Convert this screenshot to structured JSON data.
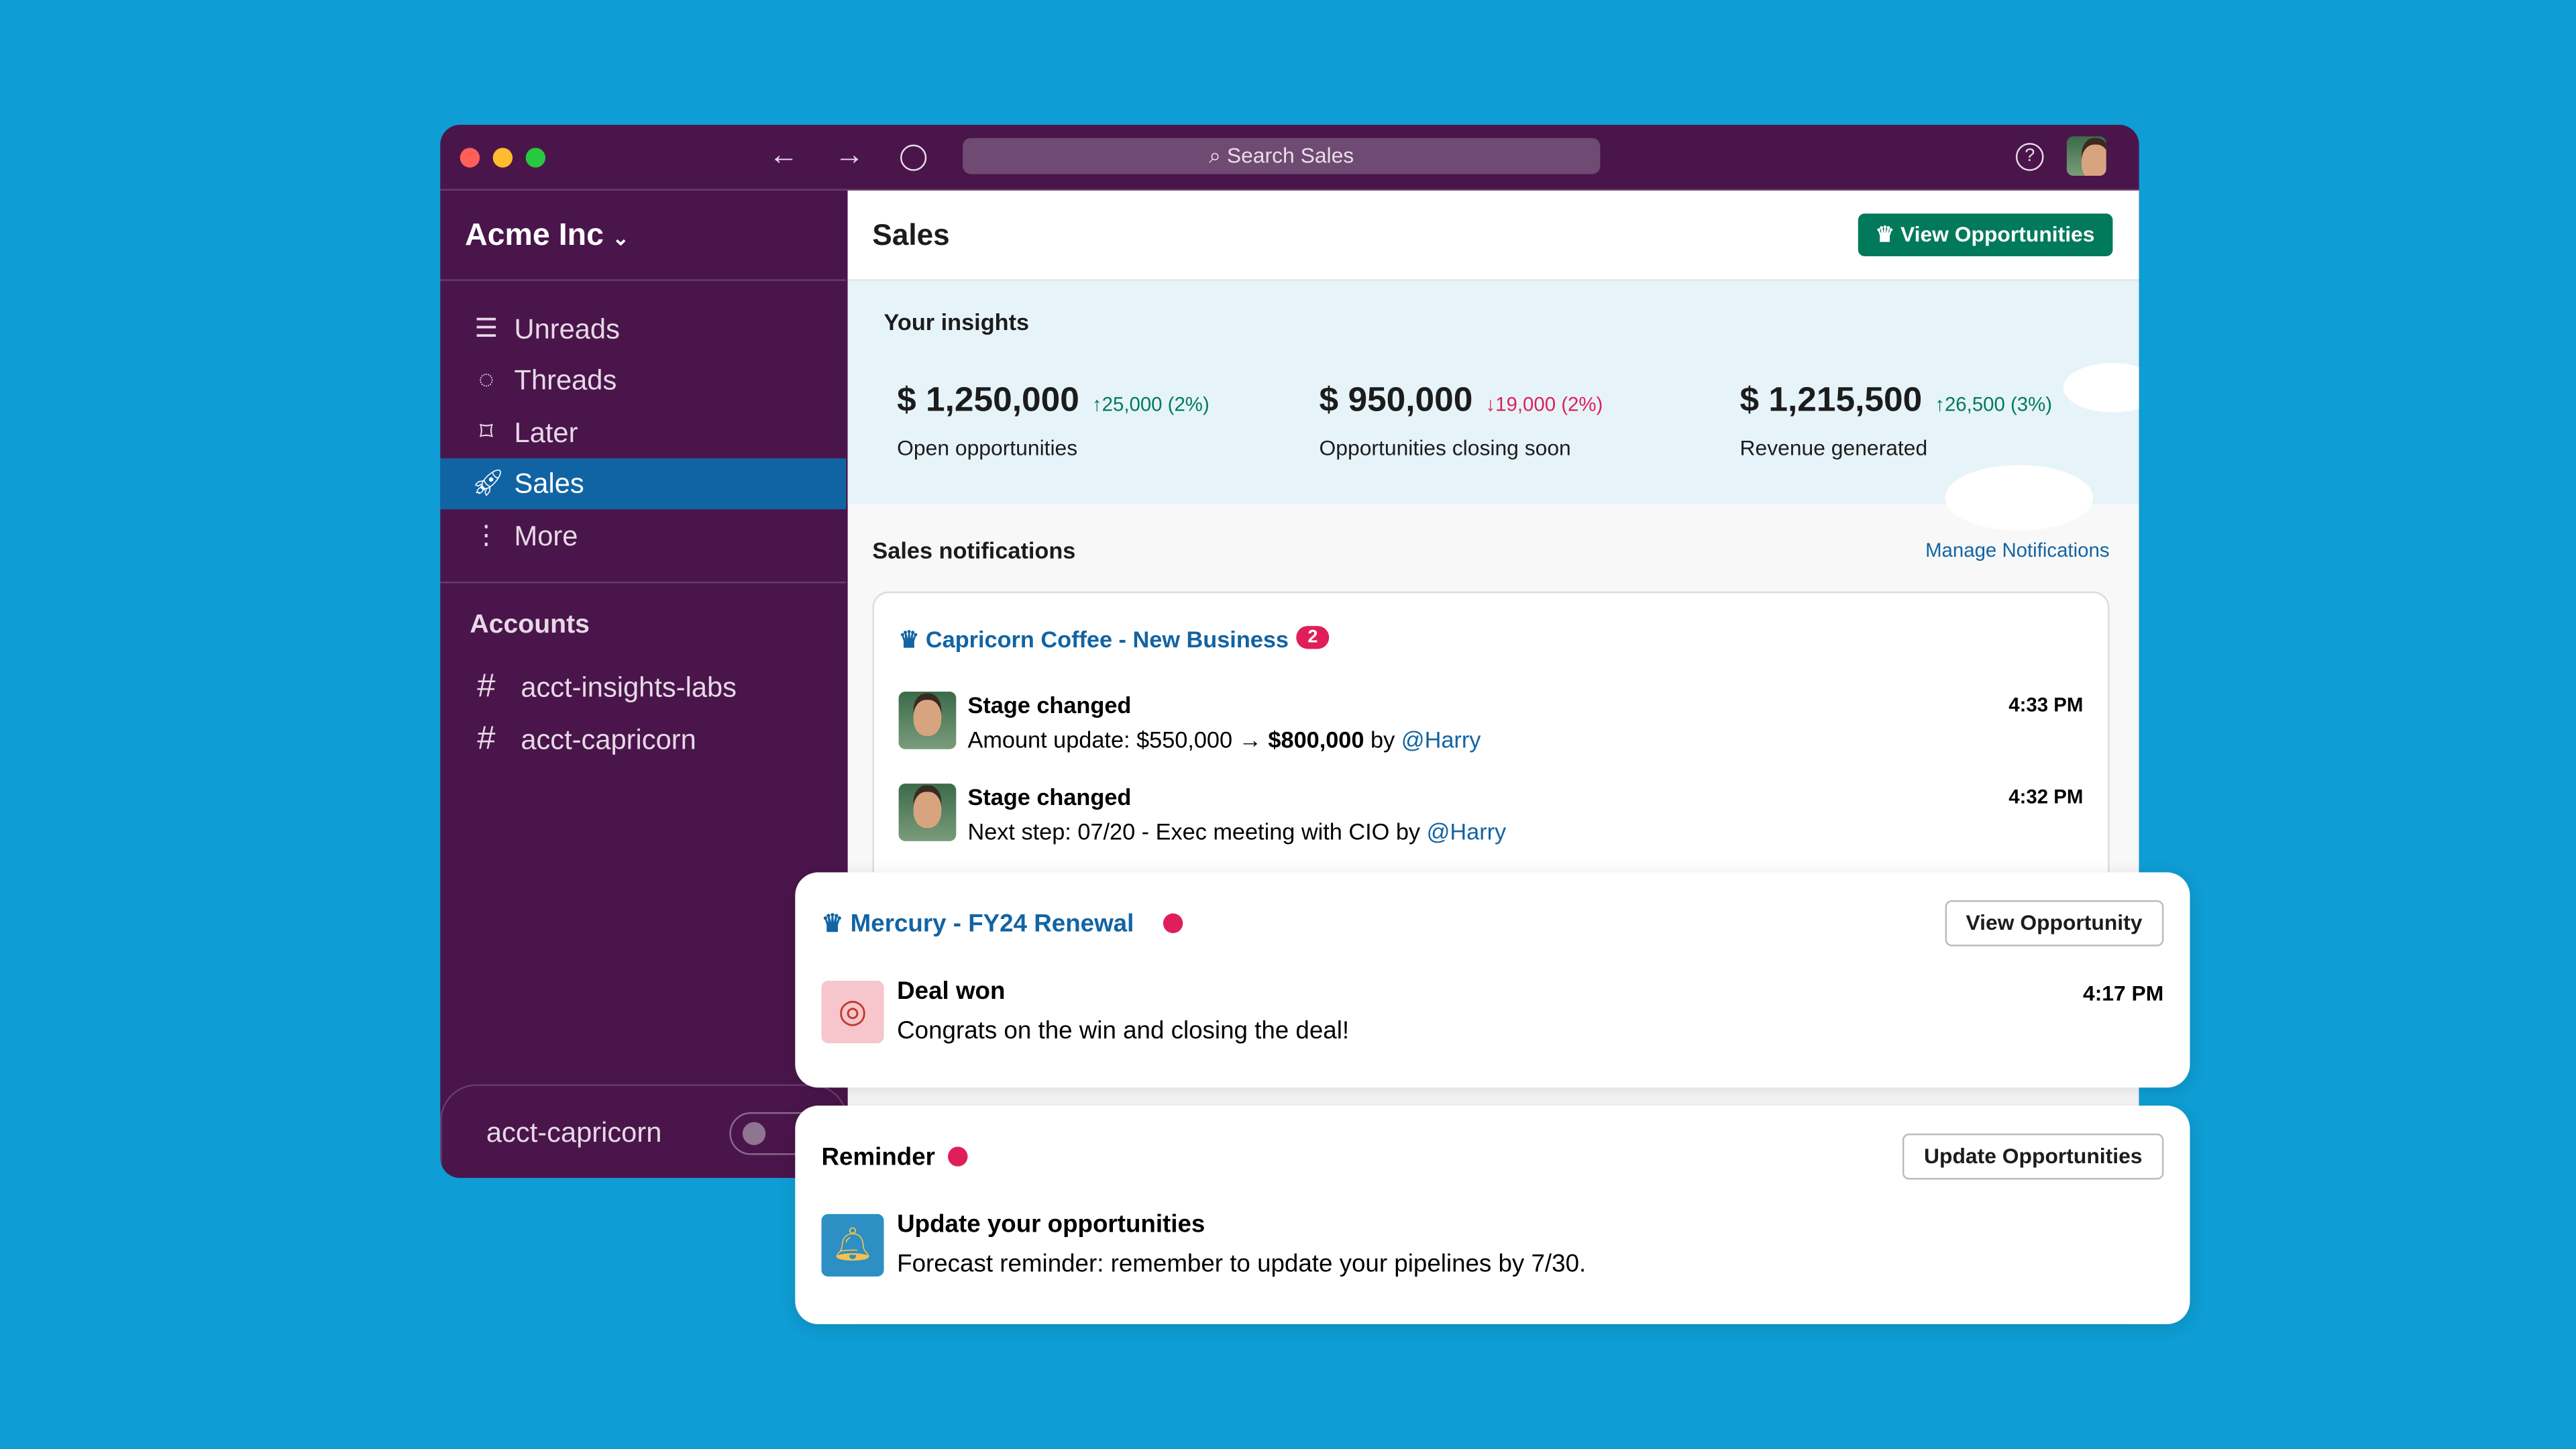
{
  "window": {
    "search_placeholder": "Search Sales",
    "colors": {
      "background": "#0e9dd4",
      "sidebar": "#4a154b",
      "active": "#1164a3",
      "primary_button": "#007a5a",
      "alert": "#e01e5a",
      "link": "#1264a3"
    }
  },
  "sidebar": {
    "workspace": "Acme Inc",
    "items": [
      {
        "label": "Unreads",
        "icon": "list-icon"
      },
      {
        "label": "Threads",
        "icon": "threads-icon"
      },
      {
        "label": "Later",
        "icon": "bookmark-icon"
      },
      {
        "label": "Sales",
        "icon": "rocket-icon",
        "active": true
      },
      {
        "label": "More",
        "icon": "more-vertical-icon"
      }
    ],
    "section_title": "Accounts",
    "channels": [
      "acct-insights-labs",
      "acct-capricorn"
    ],
    "huddle_channel": "acct-capricorn"
  },
  "header": {
    "title": "Sales",
    "view_button": "View Opportunities"
  },
  "insights": {
    "title": "Your insights",
    "metrics": [
      {
        "value": "$ 1,250,000",
        "delta": "25,000 (2%)",
        "direction": "up",
        "label": "Open opportunities"
      },
      {
        "value": "$ 950,000",
        "delta": "19,000 (2%)",
        "direction": "down",
        "label": "Opportunities closing soon"
      },
      {
        "value": "$ 1,215,500",
        "delta": "26,500 (3%)",
        "direction": "up",
        "label": "Revenue generated"
      }
    ]
  },
  "notifications": {
    "title": "Sales notifications",
    "manage_link": "Manage Notifications",
    "card": {
      "title": "Capricorn Coffee - New Business",
      "badge": "2",
      "entries": [
        {
          "heading": "Stage changed",
          "time": "4:33 PM",
          "text_a": "Amount update: $550,000 → ",
          "text_bold": "$800,000",
          "text_b": " by ",
          "mention": "@Harry"
        },
        {
          "heading": "Stage changed",
          "time": "4:32 PM",
          "text_a": "Next step: 07/20 - Exec meeting with CIO by ",
          "mention": "@Harry"
        }
      ]
    }
  },
  "popup_deal": {
    "title": "Mercury - FY24 Renewal",
    "button": "View Opportunity",
    "heading": "Deal won",
    "time": "4:17 PM",
    "text": "Congrats on the win and closing the deal!"
  },
  "popup_reminder": {
    "title": "Reminder",
    "button": "Update Opportunities",
    "heading": "Update your opportunities",
    "text": "Forecast reminder: remember to update your pipelines by 7/30."
  }
}
